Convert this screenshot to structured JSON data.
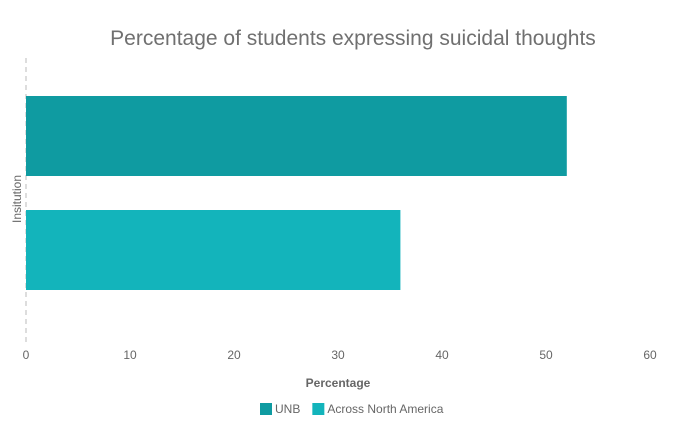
{
  "chart_data": {
    "type": "bar",
    "orientation": "horizontal",
    "title": "Percentage of students expressing suicidal thoughts",
    "xlabel": "Percentage",
    "ylabel": "Insitution",
    "xlim": [
      0,
      60
    ],
    "xticks": [
      0,
      10,
      20,
      30,
      40,
      50,
      60
    ],
    "grid": false,
    "legend_position": "bottom",
    "series": [
      {
        "name": "UNB",
        "value": 52,
        "color": "#0f9ba1"
      },
      {
        "name": "Across North America",
        "value": 36,
        "color": "#13b4bb"
      }
    ]
  }
}
